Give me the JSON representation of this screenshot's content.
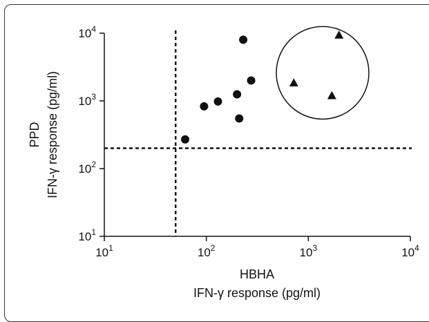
{
  "chart_data": {
    "type": "scatter",
    "xlabel_line1": "HBHA",
    "xlabel_line2": "IFN-γ response (pg/ml)",
    "ylabel_line1": "PPD",
    "ylabel_line2": "IFN-γ response (pg/ml)",
    "x_scale": "log",
    "y_scale": "log",
    "xlim": [
      10,
      10000
    ],
    "ylim": [
      10,
      10000
    ],
    "x_ticks": [
      {
        "value": 10,
        "base": "10",
        "exp": "1"
      },
      {
        "value": 100,
        "base": "10",
        "exp": "2"
      },
      {
        "value": 1000,
        "base": "10",
        "exp": "3"
      },
      {
        "value": 10000,
        "base": "10",
        "exp": "4"
      }
    ],
    "y_ticks": [
      {
        "value": 10,
        "base": "10",
        "exp": "1"
      },
      {
        "value": 100,
        "base": "10",
        "exp": "2"
      },
      {
        "value": 1000,
        "base": "10",
        "exp": "3"
      },
      {
        "value": 10000,
        "base": "10",
        "exp": "4"
      }
    ],
    "grid": false,
    "cutoffs": {
      "x": 50,
      "y": 200
    },
    "series": [
      {
        "marker": "circle",
        "points": [
          {
            "x": 62,
            "y": 270
          },
          {
            "x": 95,
            "y": 830
          },
          {
            "x": 130,
            "y": 980
          },
          {
            "x": 200,
            "y": 1250
          },
          {
            "x": 210,
            "y": 550
          },
          {
            "x": 230,
            "y": 8000
          },
          {
            "x": 275,
            "y": 2000
          }
        ]
      },
      {
        "marker": "triangle",
        "points": [
          {
            "x": 720,
            "y": 1850
          },
          {
            "x": 1700,
            "y": 1200
          },
          {
            "x": 2000,
            "y": 9400
          }
        ]
      }
    ],
    "annotations": [
      {
        "type": "circle",
        "label": "",
        "center": {
          "x": 1380,
          "y": 2600
        }
      }
    ]
  }
}
